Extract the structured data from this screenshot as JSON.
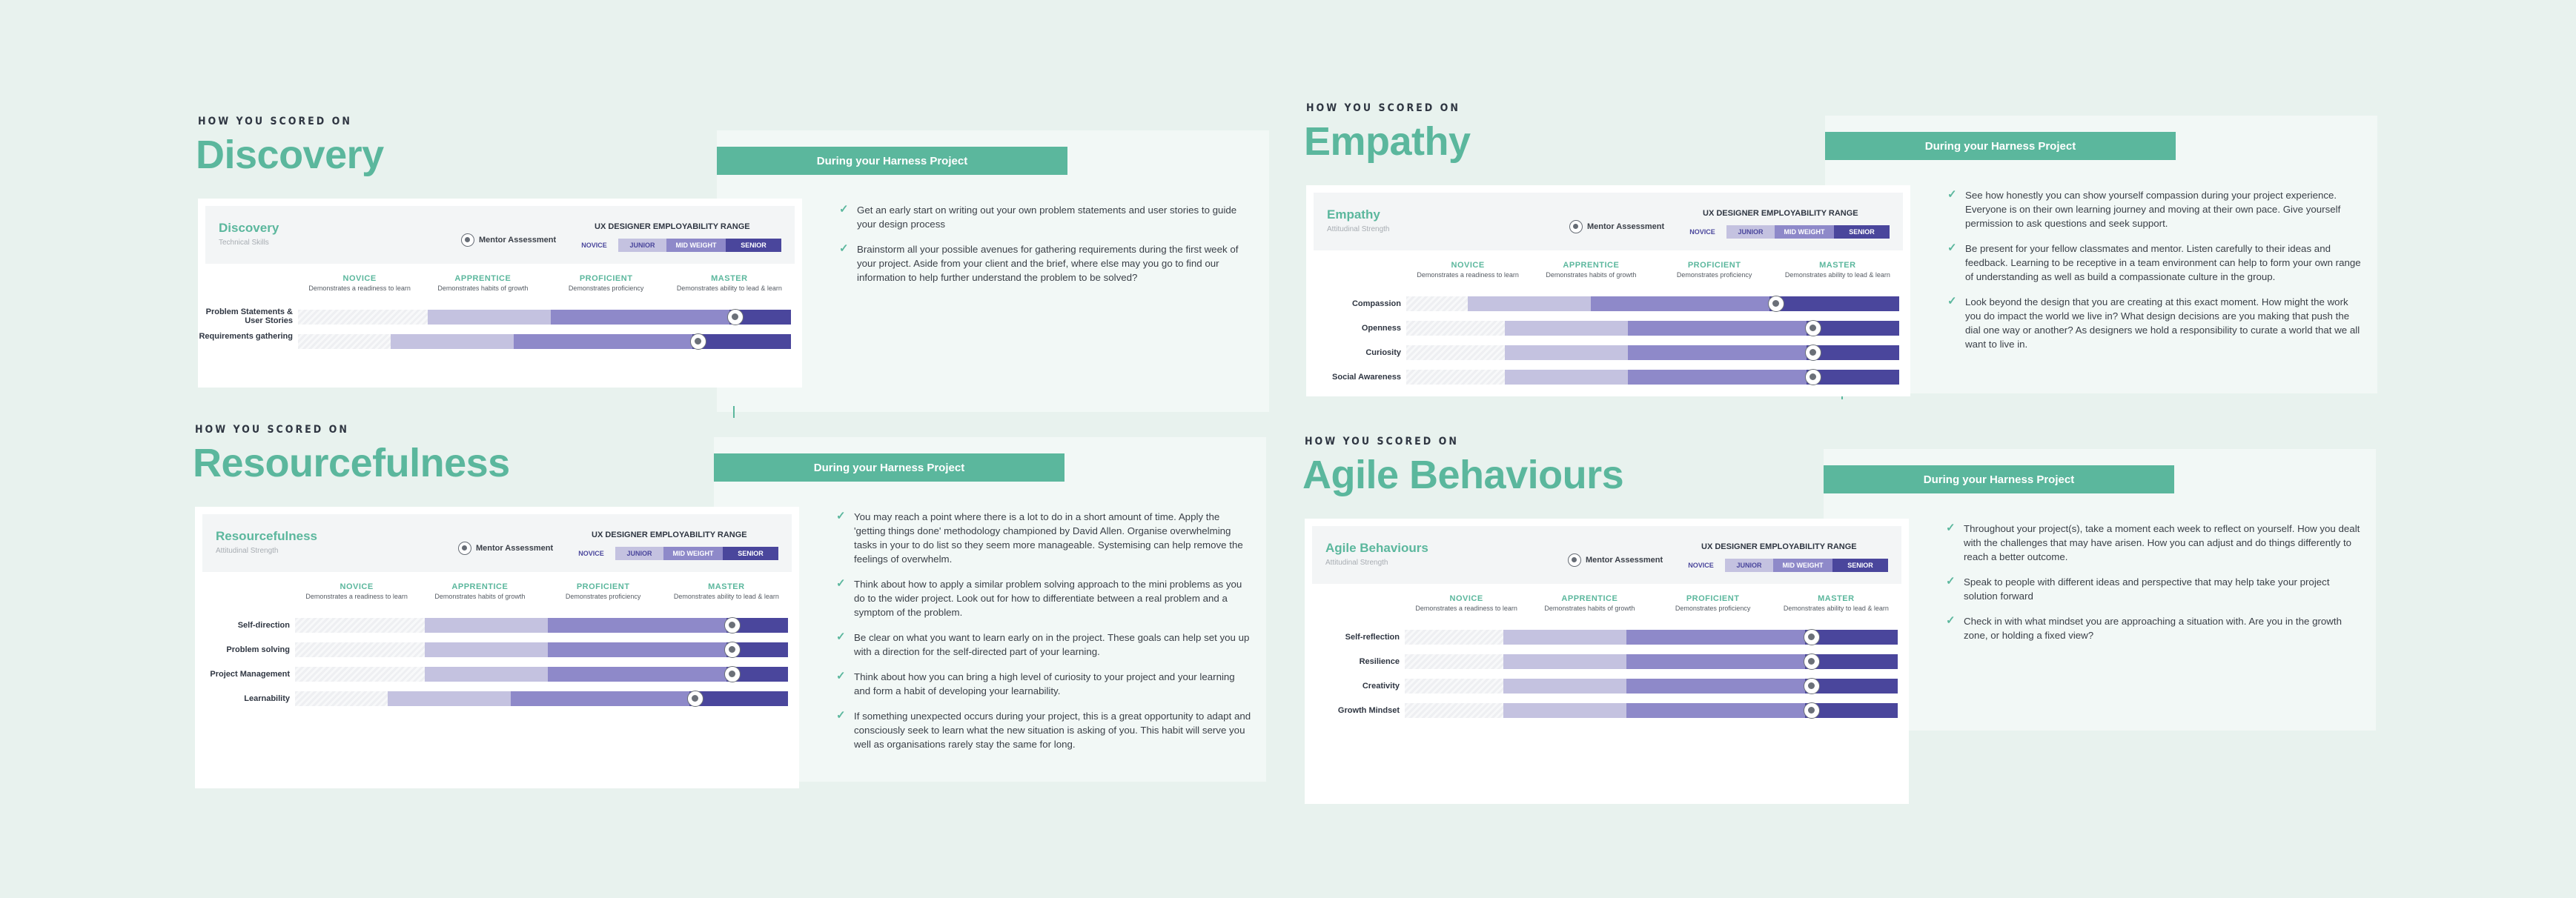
{
  "colors": {
    "accent": "#5bb79d",
    "novice": "#f3f5f6",
    "junior": "#c4c2e0",
    "midweight": "#8e89c9",
    "senior": "#4a469c"
  },
  "common": {
    "eyebrow": "HOW YOU SCORED ON",
    "banner": "During your Harness Project",
    "mentor": "Mentor Assessment",
    "range_title": "UX DESIGNER EMPLOYABILITY RANGE",
    "range": [
      "NOVICE",
      "JUNIOR",
      "MID WEIGHT",
      "SENIOR"
    ],
    "levels": [
      {
        "name": "NOVICE",
        "desc": "Demonstrates a readiness to learn"
      },
      {
        "name": "APPRENTICE",
        "desc": "Demonstrates habits of growth"
      },
      {
        "name": "PROFICIENT",
        "desc": "Demonstrates proficiency"
      },
      {
        "name": "MASTER",
        "desc": "Demonstrates ability to lead & learn"
      }
    ]
  },
  "sections": [
    {
      "title": "Discovery",
      "card_title": "Discovery",
      "card_sub": "Technical Skills",
      "rows": [
        {
          "label": "Problem Statements & User Stories",
          "score": 3.55
        },
        {
          "label": "Requirements gathering",
          "score": 3.25
        }
      ],
      "tips": [
        "Get an early start on writing out your own problem statements and user stories to guide your design process",
        "Brainstorm all your possible avenues for gathering requirements during the first week of your project. Aside from your client and the brief, where else may you go to find our information to help further understand the problem to be solved?"
      ]
    },
    {
      "title": "Empathy",
      "card_title": "Empathy",
      "card_sub": "Attitudinal Strength",
      "rows": [
        {
          "label": "Compassion",
          "score": 3.0
        },
        {
          "label": "Openness",
          "score": 3.3
        },
        {
          "label": "Curiosity",
          "score": 3.3
        },
        {
          "label": "Social Awareness",
          "score": 3.3
        }
      ],
      "tips": [
        "See how honestly you can show yourself compassion during your project experience. Everyone is on their own learning journey and moving at their own pace. Give yourself permission to ask questions and seek support.",
        "Be present for your fellow classmates and mentor. Listen carefully to their ideas and feedback. Learning to be receptive in a team environment can help to form your own range of understanding as well as build a compassionate culture in the group.",
        "Look beyond the design that you are creating at this exact moment. How might the work you do impact the world we live in? What design decisions are you making that push the dial one way or another? As designers we hold a responsibility to curate a world that we all want to live in."
      ]
    },
    {
      "title": "Resourcefulness",
      "card_title": "Resourcefulness",
      "card_sub": "Attitudinal Strength",
      "rows": [
        {
          "label": "Self-direction",
          "score": 3.55
        },
        {
          "label": "Problem solving",
          "score": 3.55
        },
        {
          "label": "Project Management",
          "score": 3.55
        },
        {
          "label": "Learnability",
          "score": 3.25
        }
      ],
      "tips": [
        "You may reach a point where there is a lot to do in a short amount of time. Apply the 'getting things done' methodology championed by David Allen. Organise overwhelming tasks in your to do list so they seem more manageable. Systemising can help remove the feelings of overwhelm.",
        "Think about how to apply a similar problem solving approach to the mini problems as you do to the wider project. Look out for how to differentiate between a real problem and a symptom of the problem.",
        "Be clear on what you want to learn early on in the project. These goals can help set you up with a direction for the self-directed part of your learning.",
        "Think about how you can bring a high level of curiosity to your project and your learning and form a habit of developing your learnability.",
        "If something unexpected occurs during your project, this is a great opportunity to adapt and consciously seek to learn what the new situation is asking of you. This habit will serve you well as organisations rarely stay the same for long."
      ]
    },
    {
      "title": "Agile Behaviours",
      "card_title": "Agile Behaviours",
      "card_sub": "Attitudinal Strength",
      "rows": [
        {
          "label": "Self-reflection",
          "score": 3.3
        },
        {
          "label": "Resilience",
          "score": 3.3
        },
        {
          "label": "Creativity",
          "score": 3.3
        },
        {
          "label": "Growth Mindset",
          "score": 3.3
        }
      ],
      "tips": [
        "Throughout your project(s), take a moment each week to reflect on yourself. How you dealt with the challenges that may have arisen. How you can adjust and do things differently to reach a better outcome.",
        "Speak to people with different ideas and perspective that may help take your project solution forward",
        "Check in with what mindset you are approaching a situation with. Are you in the growth zone, or holding a fixed view?"
      ]
    }
  ]
}
